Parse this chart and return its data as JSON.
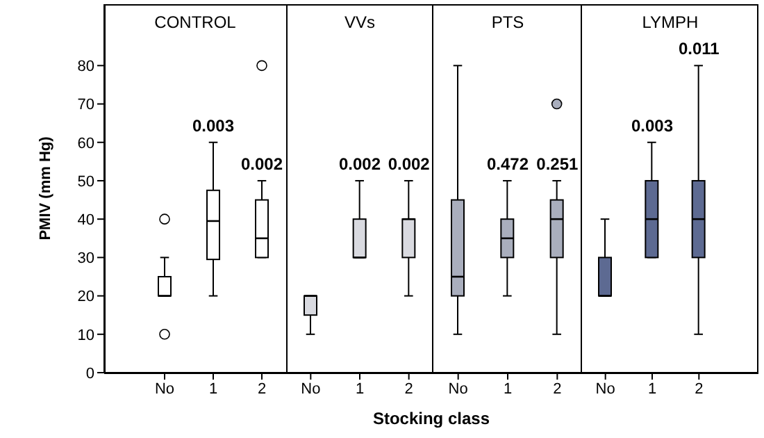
{
  "chart_data": [
    {
      "type": "box",
      "title": "CONTROL",
      "ylabel": "PMIV (mm Hg)",
      "xlabel": "Stocking class",
      "categories": [
        "No",
        "1",
        "2"
      ],
      "color": "#ffffff",
      "ylim": [
        0,
        96
      ],
      "yticks": [
        0,
        10,
        20,
        30,
        40,
        50,
        60,
        70,
        80
      ],
      "boxes": [
        {
          "low": 20,
          "q1": 20,
          "median": 20,
          "q3": 25,
          "high": 30,
          "outliers": [
            10,
            40
          ]
        },
        {
          "low": 20,
          "q1": 29.5,
          "median": 39.5,
          "q3": 47.5,
          "high": 60
        },
        {
          "low": 30,
          "q1": 30,
          "median": 35,
          "q3": 45,
          "high": 50,
          "outliers": [
            80
          ]
        }
      ],
      "annotations": [
        {
          "text": "0.003",
          "x": "1",
          "y": 60
        },
        {
          "text": "0.002",
          "x": "2",
          "y": 50
        }
      ]
    },
    {
      "type": "box",
      "title": "VVs",
      "categories": [
        "No",
        "1",
        "2"
      ],
      "color": "#d9dae0",
      "ylim": [
        0,
        96
      ],
      "yticks": [
        0,
        10,
        20,
        30,
        40,
        50,
        60,
        70,
        80
      ],
      "tick_labels": "x",
      "boxes": [
        {
          "low": 10,
          "q1": 15,
          "median": 20,
          "q3": 20,
          "high": 20
        },
        {
          "low": 30,
          "q1": 30,
          "median": 30,
          "q3": 40,
          "high": 50
        },
        {
          "low": 20,
          "q1": 30,
          "median": 40,
          "q3": 40,
          "high": 50
        }
      ],
      "annotations": [
        {
          "text": "0.002",
          "x": "1",
          "y": 50
        },
        {
          "text": "0.002",
          "x": "2",
          "y": 50
        }
      ]
    },
    {
      "type": "box",
      "title": "PTS",
      "categories": [
        "No",
        "1",
        "2"
      ],
      "color": "#a9aebd",
      "ylim": [
        0,
        96
      ],
      "yticks": [
        0,
        10,
        20,
        30,
        40,
        50,
        60,
        70,
        80
      ],
      "tick_labels": "x",
      "boxes": [
        {
          "low": 10,
          "q1": 20,
          "median": 25,
          "q3": 45,
          "high": 80
        },
        {
          "low": 20,
          "q1": 30,
          "median": 35,
          "q3": 40,
          "high": 50
        },
        {
          "low": 10,
          "q1": 30,
          "median": 40,
          "q3": 45,
          "high": 50,
          "outliers": [
            70
          ]
        }
      ],
      "annotations": [
        {
          "text": "0.472",
          "x": "1",
          "y": 50
        },
        {
          "text": "0.251",
          "x": "2",
          "y": 50
        }
      ]
    },
    {
      "type": "box",
      "title": "LYMPH",
      "categories": [
        "No",
        "1",
        "2"
      ],
      "color": "#5d6a92",
      "ylim": [
        0,
        96
      ],
      "yticks": [
        0,
        10,
        20,
        30,
        40,
        50,
        60,
        70,
        80
      ],
      "tick_labels": "x",
      "boxes": [
        {
          "low": 20,
          "q1": 20,
          "median": 20,
          "q3": 30,
          "high": 40
        },
        {
          "low": 30,
          "q1": 30,
          "median": 40,
          "q3": 50,
          "high": 60
        },
        {
          "low": 10,
          "q1": 30,
          "median": 40,
          "q3": 50,
          "high": 80
        }
      ],
      "annotations": [
        {
          "text": "0.003",
          "x": "1",
          "y": 60
        },
        {
          "text": "0.011",
          "x": "2",
          "y": 80
        }
      ]
    }
  ]
}
